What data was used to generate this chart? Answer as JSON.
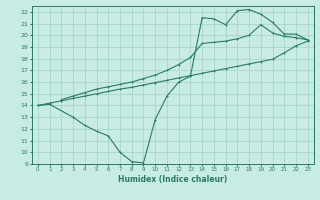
{
  "title": "",
  "xlabel": "Humidex (Indice chaleur)",
  "xlim": [
    -0.5,
    23.5
  ],
  "ylim": [
    9,
    22.5
  ],
  "xticks": [
    0,
    1,
    2,
    3,
    4,
    5,
    6,
    7,
    8,
    9,
    10,
    11,
    12,
    13,
    14,
    15,
    16,
    17,
    18,
    19,
    20,
    21,
    22,
    23
  ],
  "yticks": [
    9,
    10,
    11,
    12,
    13,
    14,
    15,
    16,
    17,
    18,
    19,
    20,
    21,
    22
  ],
  "bg_color": "#c8ebe3",
  "grid_color": "#a8d5cc",
  "line_color": "#2a7a68",
  "line1_x": [
    0,
    1,
    2,
    3,
    4,
    5,
    6,
    7,
    8,
    9,
    10,
    11,
    12,
    13,
    14,
    15,
    16,
    17,
    18,
    19,
    20,
    21,
    22,
    23
  ],
  "line1_y": [
    14.0,
    14.2,
    14.4,
    14.6,
    14.8,
    15.0,
    15.2,
    15.4,
    15.55,
    15.75,
    15.95,
    16.15,
    16.35,
    16.55,
    16.75,
    16.95,
    17.15,
    17.35,
    17.55,
    17.75,
    17.95,
    18.5,
    19.1,
    19.5
  ],
  "line2_x": [
    0,
    1,
    3,
    4,
    5,
    6,
    7,
    8,
    9,
    10,
    11,
    12,
    13,
    14,
    15,
    16,
    17,
    18,
    19,
    20,
    21,
    22,
    23
  ],
  "line2_y": [
    14.0,
    14.1,
    13.0,
    12.3,
    11.8,
    11.4,
    10.0,
    9.2,
    9.1,
    12.8,
    14.8,
    16.0,
    16.5,
    21.5,
    21.4,
    20.9,
    22.1,
    22.2,
    21.8,
    21.1,
    20.1,
    20.1,
    19.6
  ],
  "line3_x": [
    2,
    3,
    4,
    5,
    6,
    7,
    8,
    9,
    10,
    11,
    12,
    13,
    14,
    15,
    16,
    17,
    18,
    19,
    20,
    21,
    22,
    23
  ],
  "line3_y": [
    14.5,
    14.8,
    15.1,
    15.4,
    15.6,
    15.8,
    16.0,
    16.3,
    16.6,
    17.0,
    17.5,
    18.1,
    19.3,
    19.4,
    19.5,
    19.7,
    20.0,
    20.9,
    20.2,
    19.9,
    19.8,
    19.6
  ]
}
